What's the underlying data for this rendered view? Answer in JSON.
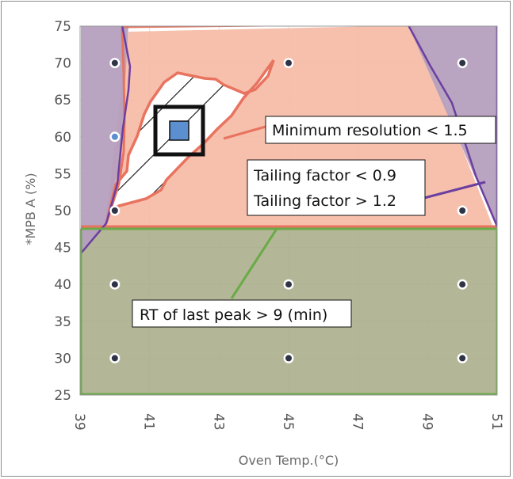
{
  "chart_data": {
    "type": "scatter",
    "title": "",
    "xlabel": "Oven Temp.(°C)",
    "ylabel": "*MPB A (%)",
    "xlim": [
      39,
      51
    ],
    "ylim": [
      25,
      75
    ],
    "x_ticks": [
      "39",
      "41",
      "43",
      "45",
      "47",
      "49",
      "51"
    ],
    "y_ticks": [
      "75",
      "70",
      "65",
      "60",
      "55",
      "50",
      "45",
      "40",
      "35",
      "30",
      "25"
    ],
    "grid": true,
    "colors": {
      "resolution_region": "#f5b9a4",
      "resolution_border": "#e8735f",
      "tailing_region": "#b59fbe",
      "tailing_border": "#6b3fa0",
      "rt_region": "#a7aa85",
      "rt_border": "#6aaa48",
      "design_point": "#2f3346",
      "setpoint": "#5b8fd0"
    },
    "design_points": [
      {
        "x": 40,
        "y": 70
      },
      {
        "x": 45,
        "y": 70
      },
      {
        "x": 50,
        "y": 70
      },
      {
        "x": 40,
        "y": 60
      },
      {
        "x": 40,
        "y": 50
      },
      {
        "x": 50,
        "y": 50
      },
      {
        "x": 40,
        "y": 40
      },
      {
        "x": 45,
        "y": 40
      },
      {
        "x": 50,
        "y": 40
      },
      {
        "x": 40,
        "y": 30
      },
      {
        "x": 45,
        "y": 30
      },
      {
        "x": 50,
        "y": 30
      }
    ],
    "setpoint": {
      "x": 42.3,
      "y": 60.5
    },
    "regions": {
      "design_space": [
        [
          40.3,
          49.5
        ],
        [
          40.6,
          51.5
        ],
        [
          40.9,
          54.5
        ],
        [
          41.3,
          56
        ],
        [
          41.6,
          56.5
        ],
        [
          42,
          57.5
        ],
        [
          42.6,
          60
        ],
        [
          42.9,
          61.5
        ],
        [
          43.5,
          64.5
        ],
        [
          44.2,
          68
        ],
        [
          44.6,
          72.5
        ],
        [
          44.9,
          70
        ],
        [
          44.6,
          68
        ],
        [
          44.4,
          66.5
        ],
        [
          43.8,
          65
        ],
        [
          43.4,
          63.5
        ],
        [
          42.9,
          60
        ],
        [
          42.4,
          58
        ],
        [
          41.9,
          56
        ],
        [
          41.2,
          53
        ],
        [
          40.6,
          51
        ]
      ]
    },
    "annotations": {
      "resolution": "Minimum resolution < 1.5",
      "tailing_low": "Tailing factor < 0.9",
      "tailing_high": "Tailing factor > 1.2",
      "rt": "RT of last peak > 9 (min)"
    }
  }
}
